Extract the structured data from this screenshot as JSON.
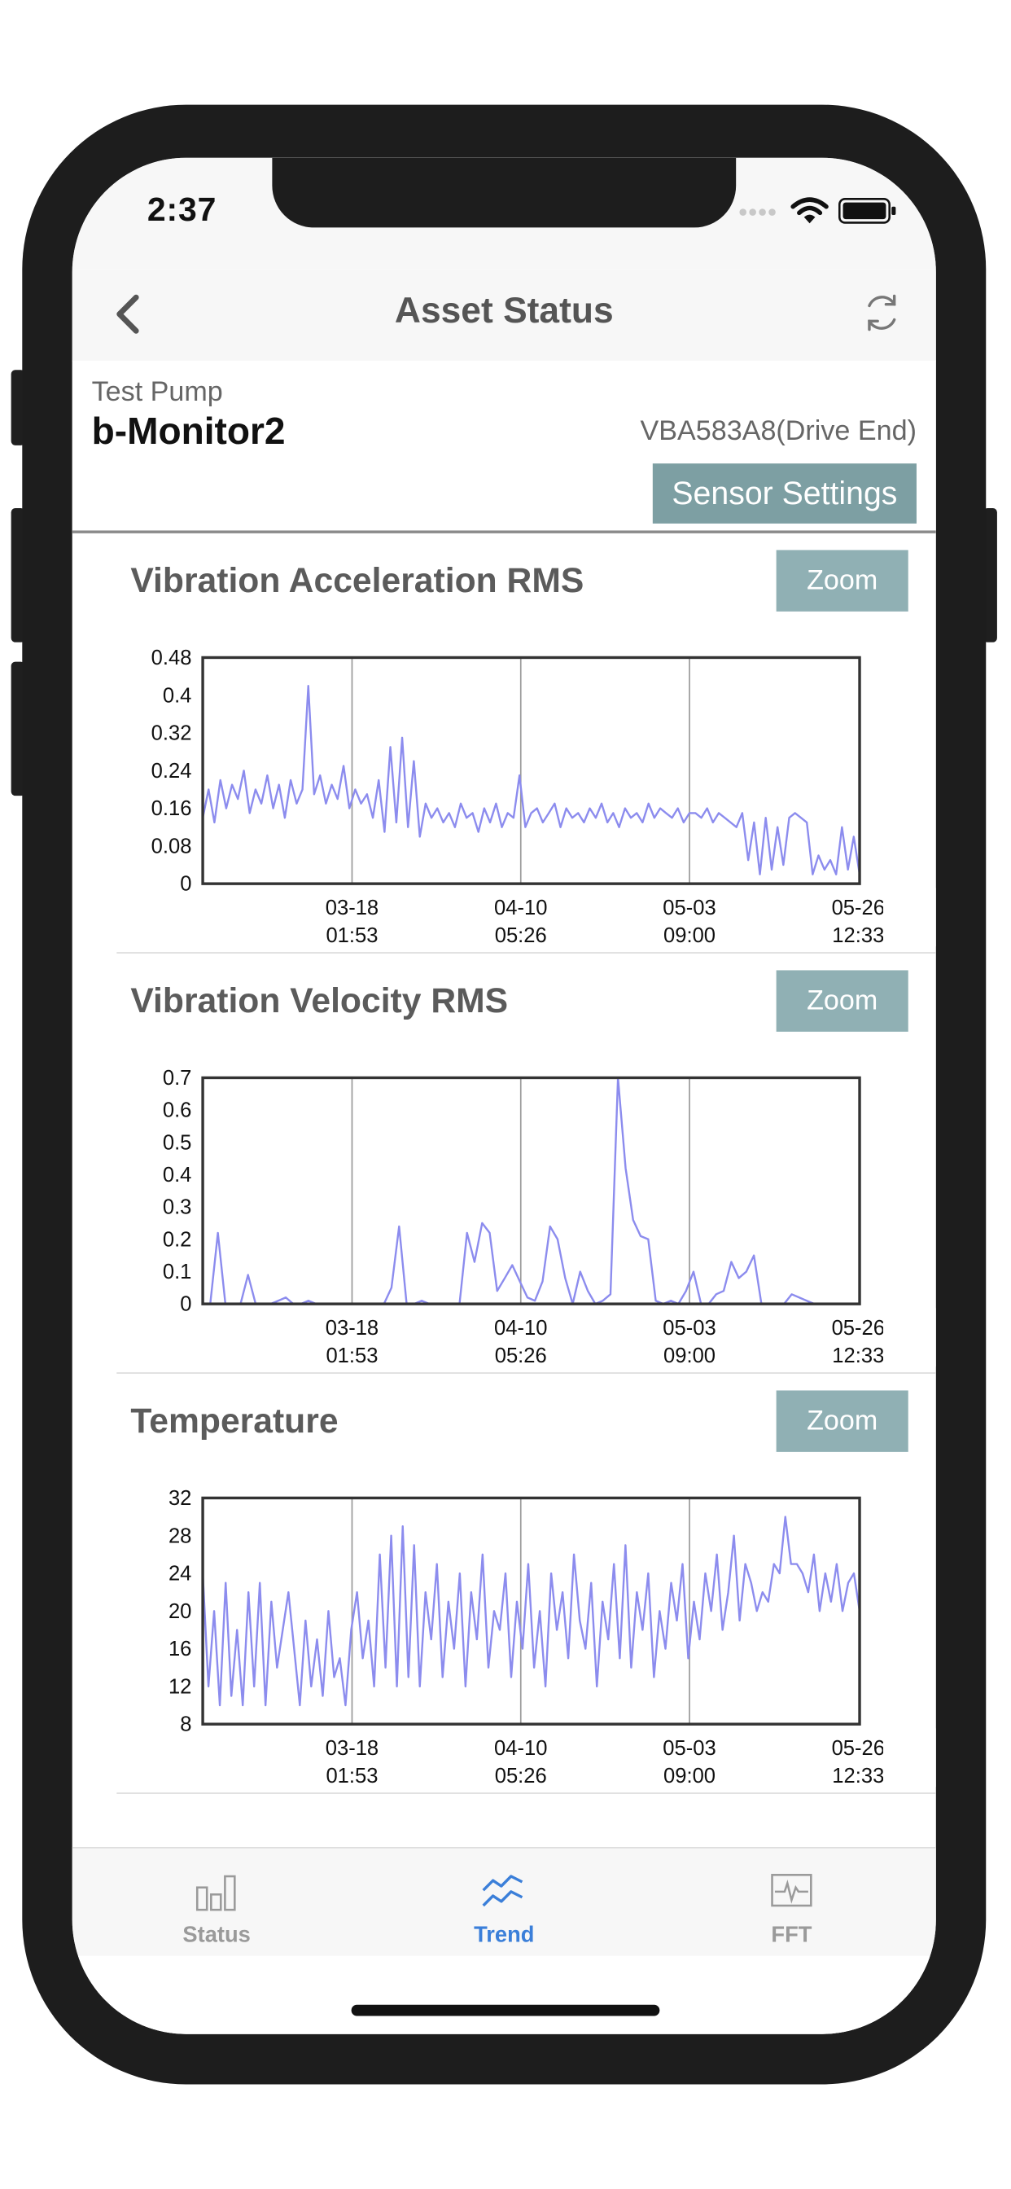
{
  "status_bar": {
    "time": "2:37"
  },
  "nav": {
    "title": "Asset Status",
    "back_icon": "chevron-left-icon",
    "refresh_icon": "refresh-icon"
  },
  "asset": {
    "group": "Test Pump",
    "name": "b-Monitor2",
    "sensor": "VBA583A8(Drive End)",
    "settings_label": "Sensor Settings"
  },
  "colors": {
    "accent": "#7d9fa3",
    "zoom_button": "#90b0b4",
    "series_line": "#8c8cee",
    "tab_active": "#3b7fd9",
    "tab_inactive": "#9a9a9a"
  },
  "panels": [
    {
      "title": "Vibration Acceleration RMS",
      "zoom_label": "Zoom"
    },
    {
      "title": "Vibration Velocity RMS",
      "zoom_label": "Zoom"
    },
    {
      "title": "Temperature",
      "zoom_label": "Zoom"
    }
  ],
  "chart_data": [
    {
      "type": "line",
      "title": "Vibration Acceleration RMS",
      "xlabel": "",
      "ylabel": "",
      "ylim": [
        0,
        0.48
      ],
      "yticks": [
        "0.48",
        "0.4",
        "0.32",
        "0.24",
        "0.16",
        "0.08",
        "0"
      ],
      "xticks": [
        {
          "date": "03-18",
          "time": "01:53"
        },
        {
          "date": "04-10",
          "time": "05:26"
        },
        {
          "date": "05-03",
          "time": "09:00"
        },
        {
          "date": "05-26",
          "time": "12:33"
        }
      ],
      "xlim": [
        "02-23",
        "05-25"
      ],
      "grid": "vertical",
      "series": [
        {
          "values": [
            0.14,
            0.2,
            0.13,
            0.22,
            0.16,
            0.21,
            0.18,
            0.24,
            0.15,
            0.2,
            0.17,
            0.23,
            0.16,
            0.21,
            0.14,
            0.22,
            0.17,
            0.2,
            0.42,
            0.19,
            0.23,
            0.17,
            0.21,
            0.18,
            0.25,
            0.16,
            0.2,
            0.17,
            0.19,
            0.14,
            0.22,
            0.11,
            0.29,
            0.13,
            0.31,
            0.12,
            0.26,
            0.1,
            0.17,
            0.14,
            0.16,
            0.13,
            0.15,
            0.12,
            0.17,
            0.14,
            0.15,
            0.11,
            0.16,
            0.13,
            0.17,
            0.12,
            0.15,
            0.14,
            0.23,
            0.12,
            0.15,
            0.16,
            0.13,
            0.15,
            0.17,
            0.12,
            0.16,
            0.14,
            0.15,
            0.13,
            0.16,
            0.14,
            0.17,
            0.13,
            0.15,
            0.12,
            0.16,
            0.14,
            0.15,
            0.13,
            0.17,
            0.14,
            0.16,
            0.15,
            0.14,
            0.16,
            0.13,
            0.15,
            0.15,
            0.14,
            0.16,
            0.13,
            0.15,
            0.14,
            0.13,
            0.12,
            0.15,
            0.05,
            0.13,
            0.02,
            0.14,
            0.03,
            0.12,
            0.04,
            0.14,
            0.15,
            0.14,
            0.13,
            0.02,
            0.06,
            0.03,
            0.05,
            0.02,
            0.12,
            0.03,
            0.1,
            0.02
          ]
        }
      ]
    },
    {
      "type": "line",
      "title": "Vibration Velocity RMS",
      "xlabel": "",
      "ylabel": "",
      "ylim": [
        0,
        0.7
      ],
      "yticks": [
        "0.7",
        "0.6",
        "0.5",
        "0.4",
        "0.3",
        "0.2",
        "0.1",
        "0"
      ],
      "xticks": [
        {
          "date": "03-18",
          "time": "01:53"
        },
        {
          "date": "04-10",
          "time": "05:26"
        },
        {
          "date": "05-03",
          "time": "09:00"
        },
        {
          "date": "05-26",
          "time": "12:33"
        }
      ],
      "xlim": [
        "02-23",
        "05-25"
      ],
      "grid": "vertical",
      "series": [
        {
          "values": [
            0.0,
            0.0,
            0.22,
            0.0,
            0.0,
            0.0,
            0.09,
            0.0,
            0.0,
            0.0,
            0.01,
            0.02,
            0.0,
            0.0,
            0.01,
            0.0,
            0.0,
            0.0,
            0.0,
            0.0,
            0.0,
            0.0,
            0.0,
            0.0,
            0.0,
            0.05,
            0.24,
            0.0,
            0.0,
            0.01,
            0.0,
            0.0,
            0.0,
            0.0,
            0.0,
            0.22,
            0.13,
            0.25,
            0.22,
            0.04,
            0.08,
            0.12,
            0.07,
            0.02,
            0.01,
            0.07,
            0.24,
            0.2,
            0.08,
            0.0,
            0.1,
            0.04,
            0.0,
            0.01,
            0.03,
            0.7,
            0.42,
            0.26,
            0.21,
            0.2,
            0.01,
            0.0,
            0.01,
            0.0,
            0.04,
            0.1,
            0.0,
            0.0,
            0.03,
            0.04,
            0.13,
            0.08,
            0.1,
            0.15,
            0.0,
            0.0,
            0.0,
            0.0,
            0.03,
            0.02,
            0.01,
            0.0,
            0.0,
            0.0,
            0.0,
            0.0,
            0.0,
            0.0
          ]
        }
      ]
    },
    {
      "type": "line",
      "title": "Temperature",
      "xlabel": "",
      "ylabel": "",
      "ylim": [
        8,
        32
      ],
      "yticks": [
        "32",
        "28",
        "24",
        "20",
        "16",
        "12",
        "8"
      ],
      "xticks": [
        {
          "date": "03-18",
          "time": "01:53"
        },
        {
          "date": "04-10",
          "time": "05:26"
        },
        {
          "date": "05-03",
          "time": "09:00"
        },
        {
          "date": "05-26",
          "time": "12:33"
        }
      ],
      "xlim": [
        "02-23",
        "05-25"
      ],
      "grid": "vertical",
      "series": [
        {
          "values": [
            24,
            12,
            20,
            10,
            23,
            11,
            18,
            10,
            22,
            12,
            23,
            10,
            21,
            14,
            18,
            22,
            16,
            10,
            19,
            12,
            17,
            11,
            20,
            13,
            15,
            10,
            18,
            22,
            15,
            19,
            12,
            26,
            14,
            28,
            12,
            29,
            13,
            27,
            12,
            22,
            17,
            25,
            13,
            21,
            16,
            24,
            12,
            22,
            17,
            26,
            14,
            20,
            18,
            24,
            13,
            21,
            16,
            25,
            14,
            20,
            12,
            24,
            18,
            22,
            15,
            26,
            19,
            16,
            23,
            12,
            21,
            17,
            25,
            15,
            27,
            14,
            22,
            18,
            24,
            13,
            20,
            16,
            23,
            19,
            25,
            15,
            21,
            17,
            24,
            20,
            26,
            18,
            22,
            28,
            19,
            25,
            23,
            20,
            22,
            21,
            25,
            24,
            30,
            25,
            25,
            24,
            22,
            26,
            20,
            24,
            21,
            25,
            20,
            23,
            24,
            20
          ]
        }
      ]
    }
  ],
  "tabs": [
    {
      "label": "Status",
      "icon": "bar-chart-icon",
      "active": false
    },
    {
      "label": "Trend",
      "icon": "trend-icon",
      "active": true
    },
    {
      "label": "FFT",
      "icon": "waveform-icon",
      "active": false
    }
  ]
}
